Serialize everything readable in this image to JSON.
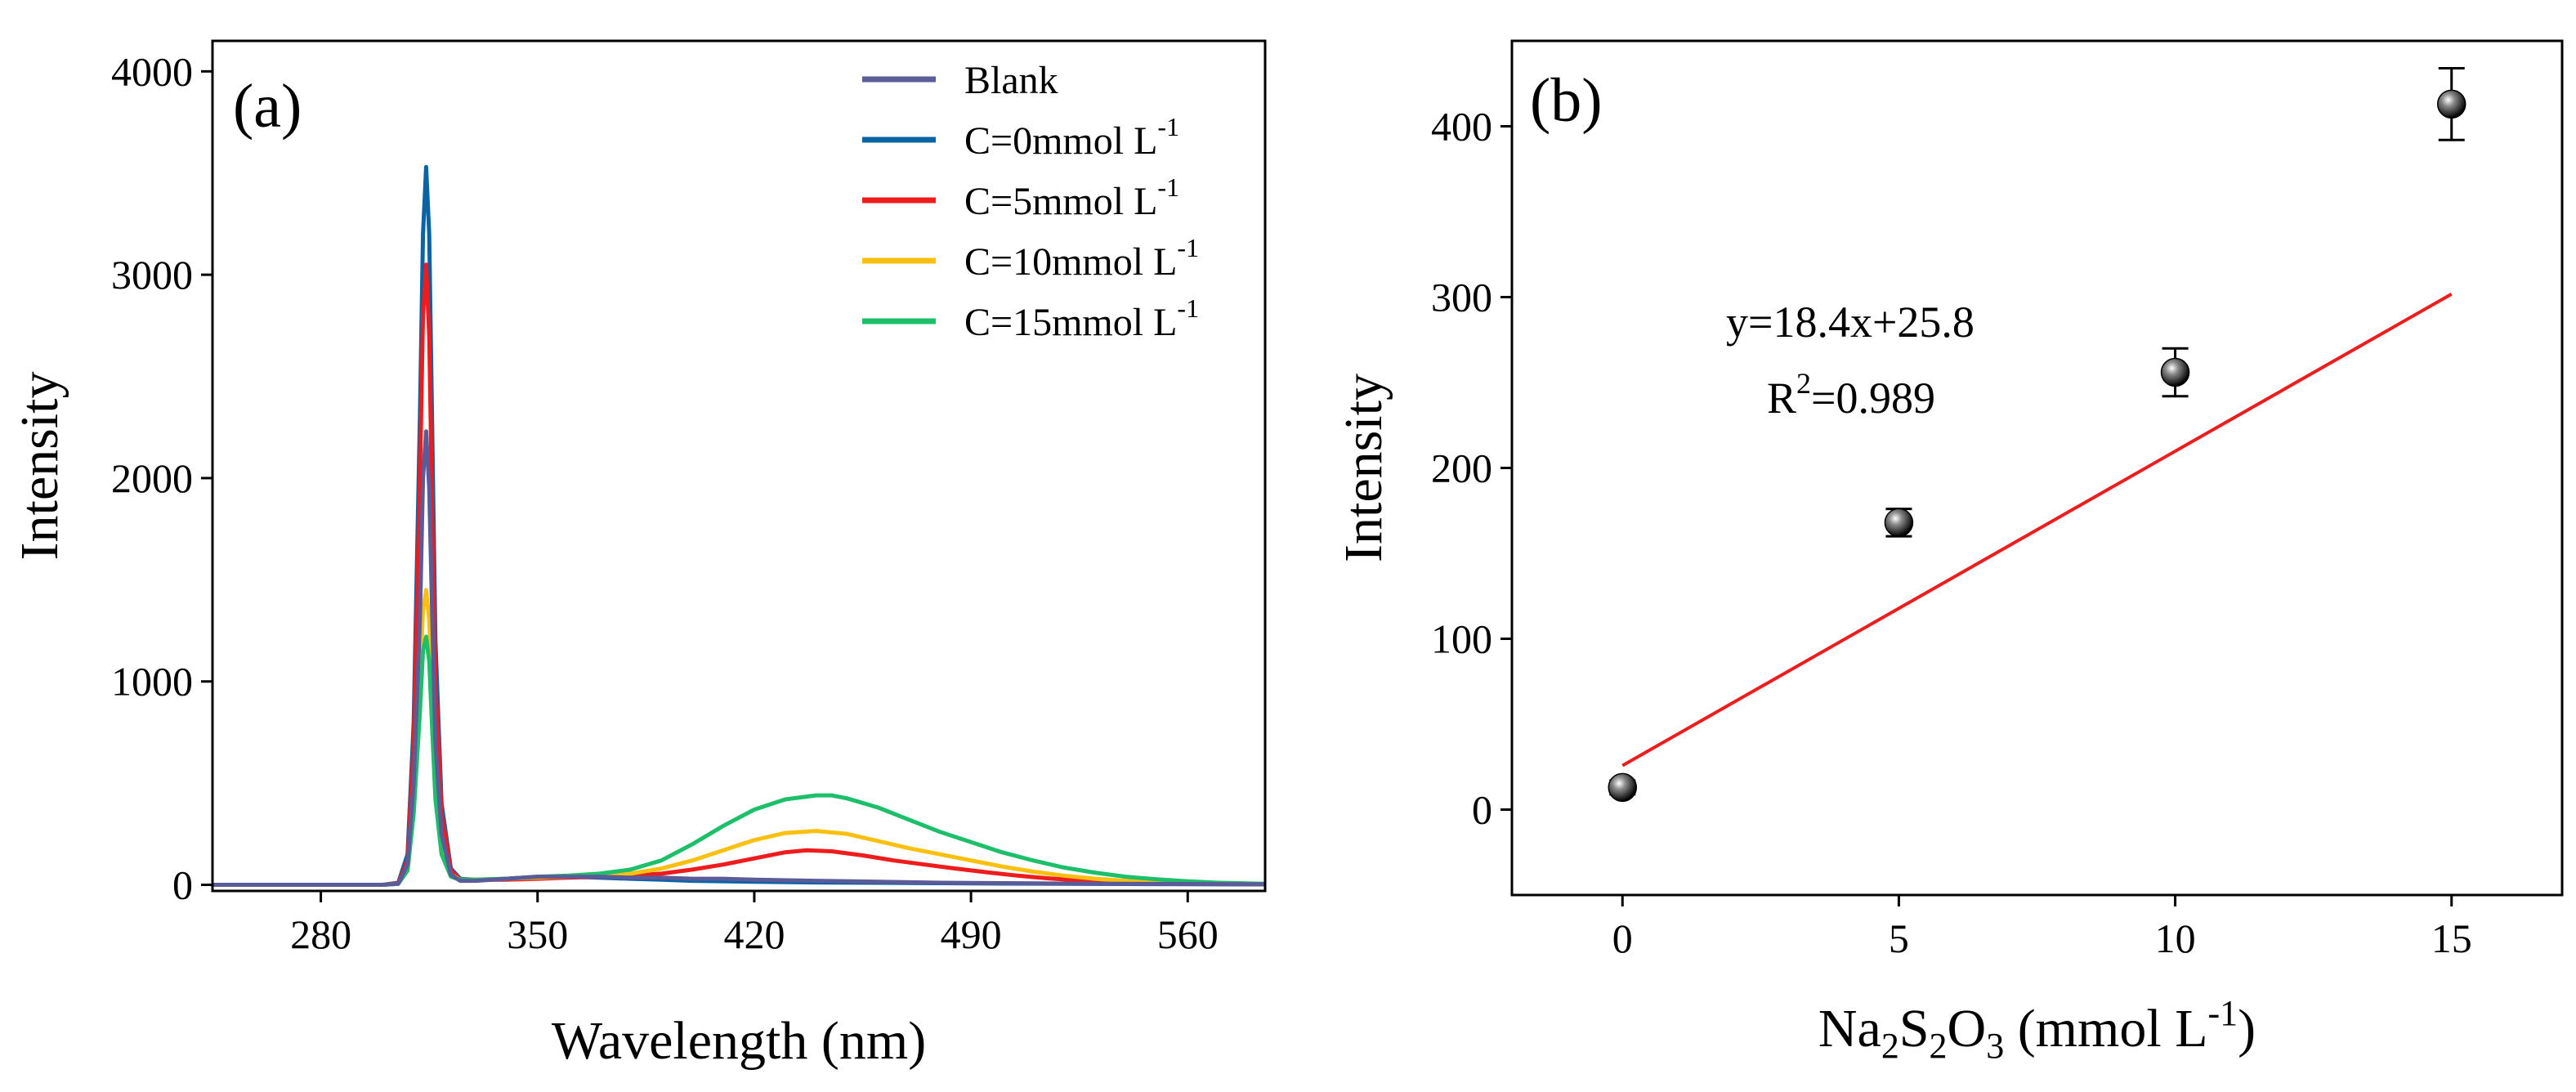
{
  "chart_data": [
    {
      "type": "line",
      "panel_label": "(a)",
      "xlabel": "Wavelength (nm)",
      "ylabel": "Intensity",
      "xlim": [
        245,
        585
      ],
      "ylim": [
        -30,
        4150
      ],
      "xticks": [
        280,
        350,
        420,
        490,
        560
      ],
      "yticks": [
        0,
        1000,
        2000,
        3000,
        4000
      ],
      "legend_position": "top-right",
      "series": [
        {
          "name": "Blank",
          "label_main": "Blank",
          "label_sup": "",
          "color": "#5b5b9a",
          "x": [
            245,
            300,
            305,
            308,
            310,
            312,
            313,
            314,
            315,
            316,
            317,
            319,
            322,
            325,
            330,
            340,
            350,
            360,
            370,
            380,
            390,
            400,
            410,
            420,
            440,
            460,
            480,
            500,
            520,
            540,
            560,
            585
          ],
          "y": [
            0,
            0,
            5,
            100,
            500,
            1300,
            2000,
            2230,
            1950,
            1300,
            700,
            250,
            50,
            20,
            20,
            30,
            40,
            40,
            40,
            35,
            35,
            30,
            30,
            25,
            20,
            15,
            10,
            8,
            6,
            5,
            4,
            3
          ]
        },
        {
          "name": "C=0mmol L-1",
          "label_main": "C=0mmol L",
          "label_sup": "-1",
          "color": "#0a63a4",
          "x": [
            245,
            300,
            305,
            308,
            310,
            312,
            313,
            314,
            315,
            316,
            317,
            319,
            322,
            325,
            330,
            340,
            350,
            360,
            370,
            380,
            390,
            400,
            420,
            440,
            460,
            480,
            500,
            520,
            540,
            560,
            585
          ],
          "y": [
            0,
            0,
            10,
            150,
            800,
            2300,
            3200,
            3530,
            3200,
            2200,
            1200,
            400,
            80,
            30,
            25,
            30,
            40,
            40,
            35,
            30,
            25,
            20,
            15,
            12,
            10,
            8,
            6,
            5,
            4,
            3,
            2
          ]
        },
        {
          "name": "C=5mmol L-1",
          "label_main": "C=5mmol L",
          "label_sup": "-1",
          "color": "#ee1c1c",
          "x": [
            245,
            300,
            305,
            308,
            310,
            312,
            313,
            314,
            315,
            316,
            317,
            319,
            322,
            325,
            330,
            340,
            350,
            360,
            370,
            380,
            390,
            400,
            410,
            420,
            430,
            437,
            445,
            455,
            465,
            475,
            485,
            495,
            505,
            515,
            525,
            535,
            545,
            560,
            585
          ],
          "y": [
            0,
            0,
            8,
            120,
            700,
            2000,
            2800,
            3050,
            2700,
            1800,
            1000,
            350,
            70,
            25,
            25,
            25,
            30,
            35,
            40,
            45,
            55,
            75,
            100,
            130,
            160,
            170,
            165,
            145,
            120,
            100,
            80,
            62,
            45,
            32,
            22,
            15,
            10,
            6,
            3
          ]
        },
        {
          "name": "C=10mmol L-1",
          "label_main": "C=10mmol L",
          "label_sup": "-1",
          "color": "#fbbf10",
          "x": [
            245,
            300,
            305,
            308,
            310,
            312,
            313,
            314,
            315,
            316,
            317,
            319,
            322,
            325,
            330,
            340,
            350,
            360,
            370,
            380,
            390,
            400,
            410,
            420,
            430,
            440,
            450,
            460,
            470,
            480,
            490,
            500,
            510,
            520,
            530,
            540,
            550,
            560,
            585
          ],
          "y": [
            0,
            0,
            5,
            80,
            400,
            1000,
            1350,
            1450,
            1300,
            900,
            500,
            180,
            50,
            25,
            25,
            30,
            35,
            40,
            45,
            55,
            80,
            120,
            170,
            220,
            255,
            265,
            250,
            215,
            180,
            150,
            120,
            90,
            65,
            45,
            30,
            20,
            13,
            8,
            4
          ]
        },
        {
          "name": "C=15mmol L-1",
          "label_main": "C=15mmol L",
          "label_sup": "-1",
          "color": "#1ebf6a",
          "x": [
            245,
            300,
            305,
            308,
            310,
            312,
            313,
            314,
            315,
            316,
            317,
            319,
            322,
            325,
            330,
            340,
            350,
            360,
            370,
            380,
            390,
            400,
            410,
            420,
            430,
            440,
            445,
            450,
            460,
            470,
            480,
            490,
            500,
            510,
            520,
            530,
            540,
            550,
            560,
            570,
            585
          ],
          "y": [
            0,
            0,
            5,
            70,
            350,
            850,
            1150,
            1220,
            1100,
            750,
            420,
            150,
            40,
            25,
            25,
            30,
            40,
            45,
            55,
            75,
            120,
            200,
            290,
            370,
            420,
            440,
            440,
            425,
            380,
            320,
            260,
            210,
            160,
            120,
            85,
            60,
            40,
            27,
            17,
            10,
            5
          ]
        }
      ]
    },
    {
      "type": "scatter",
      "panel_label": "(b)",
      "xlabel": {
        "p1": "Na",
        "s1": "2",
        "p2": "S",
        "s2": "2",
        "p3": "O",
        "s3": "3",
        "p4": " (mmol L",
        "sup": "-1",
        "p5": ")"
      },
      "ylabel": "Intensity",
      "xlim": [
        -2,
        17
      ],
      "ylim": [
        -50,
        450
      ],
      "xticks": [
        0,
        5,
        10,
        15
      ],
      "yticks": [
        0,
        100,
        200,
        300,
        400
      ],
      "points": {
        "x": [
          0,
          5,
          10,
          15
        ],
        "y": [
          13,
          168,
          256,
          413
        ],
        "err": [
          4,
          8,
          14,
          21
        ]
      },
      "fit": {
        "slope": 18.4,
        "intercept": 25.8,
        "x_range": [
          0,
          15
        ],
        "color": "#ee1c1c"
      },
      "annotation": {
        "equation": "y=18.4x+25.8",
        "r2_main": "R",
        "r2_sup": "2",
        "r2_value": "=0.989"
      }
    }
  ]
}
